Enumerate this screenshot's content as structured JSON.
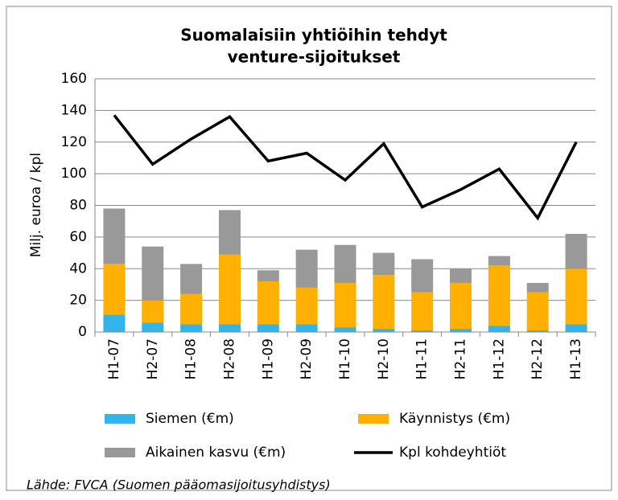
{
  "chart_data": {
    "type": "bar",
    "stacked": true,
    "title": [
      "Suomalaisiin yhtiöihin tehdyt",
      "venture-sijoitukset"
    ],
    "y_label": "Milj. euroa / kpl",
    "source": "Lähde: FVCA (Suomen pääomasijoitusyhdistys)",
    "categories": [
      "H1-07",
      "H2-07",
      "H1-08",
      "H2-08",
      "H1-09",
      "H2-09",
      "H1-10",
      "H2-10",
      "H1-11",
      "H2-11",
      "H1-12",
      "H2-12",
      "H1-13"
    ],
    "series": [
      {
        "name": "Siemen (€m)",
        "color": "#33b5ea",
        "values": [
          11,
          6,
          5,
          5,
          5,
          5,
          3,
          2,
          1,
          2,
          4,
          1,
          5
        ]
      },
      {
        "name": "Käynnistys (€m)",
        "color": "#ffb000",
        "values": [
          32,
          14,
          19,
          44,
          27,
          23,
          28,
          34,
          24,
          29,
          38,
          24,
          35
        ]
      },
      {
        "name": "Aikainen kasvu (€m)",
        "color": "#999999",
        "values": [
          35,
          34,
          19,
          28,
          7,
          24,
          24,
          14,
          21,
          9,
          6,
          6,
          22
        ]
      },
      {
        "name": "Kpl kohdeyhtiöt",
        "color": "#000000",
        "type": "line",
        "values": [
          137,
          106,
          122,
          136,
          108,
          113,
          96,
          119,
          79,
          90,
          103,
          72,
          120
        ]
      }
    ],
    "ylim": [
      0,
      160
    ],
    "yticks": [
      0,
      20,
      40,
      60,
      80,
      100,
      120,
      140,
      160
    ],
    "grid": true
  }
}
